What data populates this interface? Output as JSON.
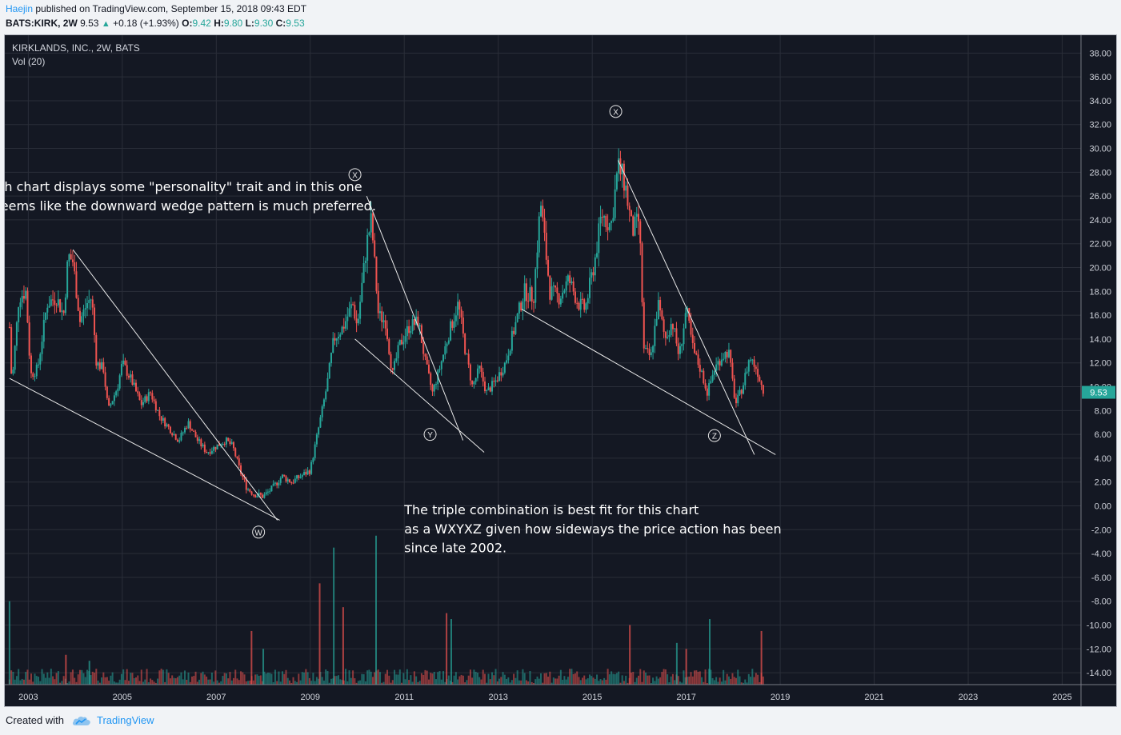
{
  "header": {
    "author": "Haejin",
    "published_text": "published on TradingView.com, September 15, 2018 09:43 EDT",
    "symbol": "BATS:KIRK, 2W",
    "last_price": "9.53",
    "change": "+0.18 (+1.93%)",
    "open_label": "O:",
    "open_value": "9.42",
    "high_label": "H:",
    "high_value": "9.80",
    "low_label": "L:",
    "low_value": "9.30",
    "close_label": "C:",
    "close_value": "9.53"
  },
  "footer": {
    "created_with": "Created with",
    "brand": "TradingView",
    "brand_icon": "tradingview-cloud-icon"
  },
  "colors": {
    "background": "#141823",
    "grid": "#2a2e39",
    "up": "#26a69a",
    "down": "#ef5350",
    "line": "#e8e8e8",
    "text": "#d1d4dc",
    "price_badge": "#26a69a"
  },
  "chart_data": {
    "type": "candlestick",
    "title": "KIRKLANDS, INC., 2W, BATS",
    "subtitle": "Vol (20)",
    "last_price": 9.53,
    "ylim": [
      -15,
      39.5
    ],
    "y_ticks": [
      "38.00",
      "36.00",
      "34.00",
      "32.00",
      "30.00",
      "28.00",
      "26.00",
      "24.00",
      "22.00",
      "20.00",
      "18.00",
      "16.00",
      "14.00",
      "12.00",
      "10.00",
      "8.00",
      "6.00",
      "4.00",
      "2.00",
      "0.00",
      "-2.00",
      "-4.00",
      "-6.00",
      "-8.00",
      "-10.00",
      "-12.00",
      "-14.00"
    ],
    "x_ticks": [
      "2003",
      "2005",
      "2007",
      "2009",
      "2011",
      "2013",
      "2015",
      "2017",
      "2019",
      "2021",
      "2023",
      "2025"
    ],
    "xlim": [
      2002.5,
      2025.4
    ],
    "price_path": [
      [
        2002.6,
        15.0
      ],
      [
        2002.65,
        10.0
      ],
      [
        2002.8,
        17.5
      ],
      [
        2002.95,
        18.0
      ],
      [
        2003.05,
        11.0
      ],
      [
        2003.2,
        11.5
      ],
      [
        2003.4,
        17.0
      ],
      [
        2003.6,
        17.5
      ],
      [
        2003.75,
        16.0
      ],
      [
        2003.85,
        21.0
      ],
      [
        2003.95,
        20.5
      ],
      [
        2004.1,
        15.5
      ],
      [
        2004.25,
        17.0
      ],
      [
        2004.35,
        17.5
      ],
      [
        2004.45,
        12.0
      ],
      [
        2004.6,
        11.5
      ],
      [
        2004.7,
        8.0
      ],
      [
        2004.9,
        10.0
      ],
      [
        2005.0,
        12.0
      ],
      [
        2005.2,
        10.5
      ],
      [
        2005.4,
        8.5
      ],
      [
        2005.6,
        9.5
      ],
      [
        2005.8,
        7.5
      ],
      [
        2006.0,
        6.5
      ],
      [
        2006.2,
        5.5
      ],
      [
        2006.4,
        7.0
      ],
      [
        2006.6,
        5.5
      ],
      [
        2006.8,
        4.5
      ],
      [
        2007.0,
        5.0
      ],
      [
        2007.2,
        5.5
      ],
      [
        2007.35,
        5.0
      ],
      [
        2007.5,
        3.0
      ],
      [
        2007.65,
        1.5
      ],
      [
        2007.8,
        1.0
      ],
      [
        2008.0,
        0.8
      ],
      [
        2008.2,
        1.5
      ],
      [
        2008.4,
        2.5
      ],
      [
        2008.6,
        2.0
      ],
      [
        2008.8,
        2.5
      ],
      [
        2009.0,
        3.0
      ],
      [
        2009.15,
        6.0
      ],
      [
        2009.35,
        10.0
      ],
      [
        2009.5,
        14.0
      ],
      [
        2009.7,
        15.0
      ],
      [
        2009.9,
        17.0
      ],
      [
        2010.0,
        15.0
      ],
      [
        2010.2,
        22.0
      ],
      [
        2010.3,
        24.0
      ],
      [
        2010.45,
        16.0
      ],
      [
        2010.6,
        15.5
      ],
      [
        2010.75,
        11.0
      ],
      [
        2010.9,
        13.5
      ],
      [
        2011.1,
        15.0
      ],
      [
        2011.3,
        15.5
      ],
      [
        2011.45,
        12.0
      ],
      [
        2011.6,
        9.5
      ],
      [
        2011.75,
        11.5
      ],
      [
        2011.95,
        14.5
      ],
      [
        2012.15,
        17.0
      ],
      [
        2012.3,
        13.0
      ],
      [
        2012.45,
        10.0
      ],
      [
        2012.6,
        11.5
      ],
      [
        2012.75,
        9.5
      ],
      [
        2012.95,
        10.5
      ],
      [
        2013.15,
        12.0
      ],
      [
        2013.35,
        15.0
      ],
      [
        2013.55,
        18.0
      ],
      [
        2013.75,
        17.5
      ],
      [
        2013.9,
        25.5
      ],
      [
        2014.1,
        18.0
      ],
      [
        2014.3,
        17.5
      ],
      [
        2014.5,
        19.0
      ],
      [
        2014.7,
        17.0
      ],
      [
        2014.85,
        16.5
      ],
      [
        2015.05,
        20.5
      ],
      [
        2015.2,
        24.5
      ],
      [
        2015.4,
        23.5
      ],
      [
        2015.55,
        28.5
      ],
      [
        2015.7,
        27.0
      ],
      [
        2015.85,
        23.0
      ],
      [
        2016.0,
        24.0
      ],
      [
        2016.1,
        13.0
      ],
      [
        2016.25,
        12.5
      ],
      [
        2016.4,
        17.0
      ],
      [
        2016.55,
        14.0
      ],
      [
        2016.7,
        15.5
      ],
      [
        2016.85,
        12.5
      ],
      [
        2017.0,
        16.5
      ],
      [
        2017.15,
        13.0
      ],
      [
        2017.3,
        11.5
      ],
      [
        2017.45,
        9.5
      ],
      [
        2017.6,
        11.5
      ],
      [
        2017.75,
        12.5
      ],
      [
        2017.9,
        13.0
      ],
      [
        2018.05,
        8.5
      ],
      [
        2018.2,
        10.0
      ],
      [
        2018.35,
        12.5
      ],
      [
        2018.5,
        11.5
      ],
      [
        2018.65,
        9.53
      ]
    ],
    "volume_spikes": [
      [
        2002.6,
        7.0
      ],
      [
        2003.8,
        2.5
      ],
      [
        2004.3,
        2.0
      ],
      [
        2007.75,
        4.5
      ],
      [
        2008.0,
        3.0
      ],
      [
        2009.2,
        8.5
      ],
      [
        2009.5,
        11.5
      ],
      [
        2009.7,
        6.5
      ],
      [
        2010.4,
        12.5
      ],
      [
        2011.9,
        6.0
      ],
      [
        2012.0,
        5.5
      ],
      [
        2015.8,
        5.0
      ],
      [
        2016.8,
        3.5
      ],
      [
        2017.0,
        3.0
      ],
      [
        2017.5,
        5.5
      ],
      [
        2018.6,
        4.5
      ]
    ],
    "annotations": [
      {
        "text": "Each chart displays some \"personality\" trait and in this one",
        "x": 2002.0,
        "y": 26.4
      },
      {
        "text": "it seems like the downward wedge pattern is much preferred.",
        "x": 2002.0,
        "y": 24.8
      },
      {
        "text": "The triple combination is best fit for this chart",
        "x": 2011.0,
        "y": -0.7
      },
      {
        "text": "as a WXYXZ given how sideways the price action has been",
        "x": 2011.0,
        "y": -2.3
      },
      {
        "text": "since late 2002.",
        "x": 2011.0,
        "y": -3.9
      }
    ],
    "wave_labels": [
      {
        "label": "W",
        "x": 2007.9,
        "y": -2.2
      },
      {
        "label": "X",
        "x": 2009.95,
        "y": 27.8
      },
      {
        "label": "Y",
        "x": 2011.55,
        "y": 6.0
      },
      {
        "label": "X",
        "x": 2015.5,
        "y": 33.1
      },
      {
        "label": "Z",
        "x": 2017.6,
        "y": 5.9
      }
    ],
    "trendlines": [
      [
        [
          2002.6,
          10.7
        ],
        [
          2008.35,
          -1.2
        ]
      ],
      [
        [
          2003.95,
          21.5
        ],
        [
          2008.3,
          -1.2
        ]
      ],
      [
        [
          2010.2,
          26.0
        ],
        [
          2012.25,
          5.5
        ]
      ],
      [
        [
          2009.95,
          14.0
        ],
        [
          2012.7,
          4.5
        ]
      ],
      [
        [
          2015.55,
          29.0
        ],
        [
          2018.45,
          4.3
        ]
      ],
      [
        [
          2013.5,
          16.5
        ],
        [
          2018.9,
          4.3
        ]
      ]
    ]
  }
}
